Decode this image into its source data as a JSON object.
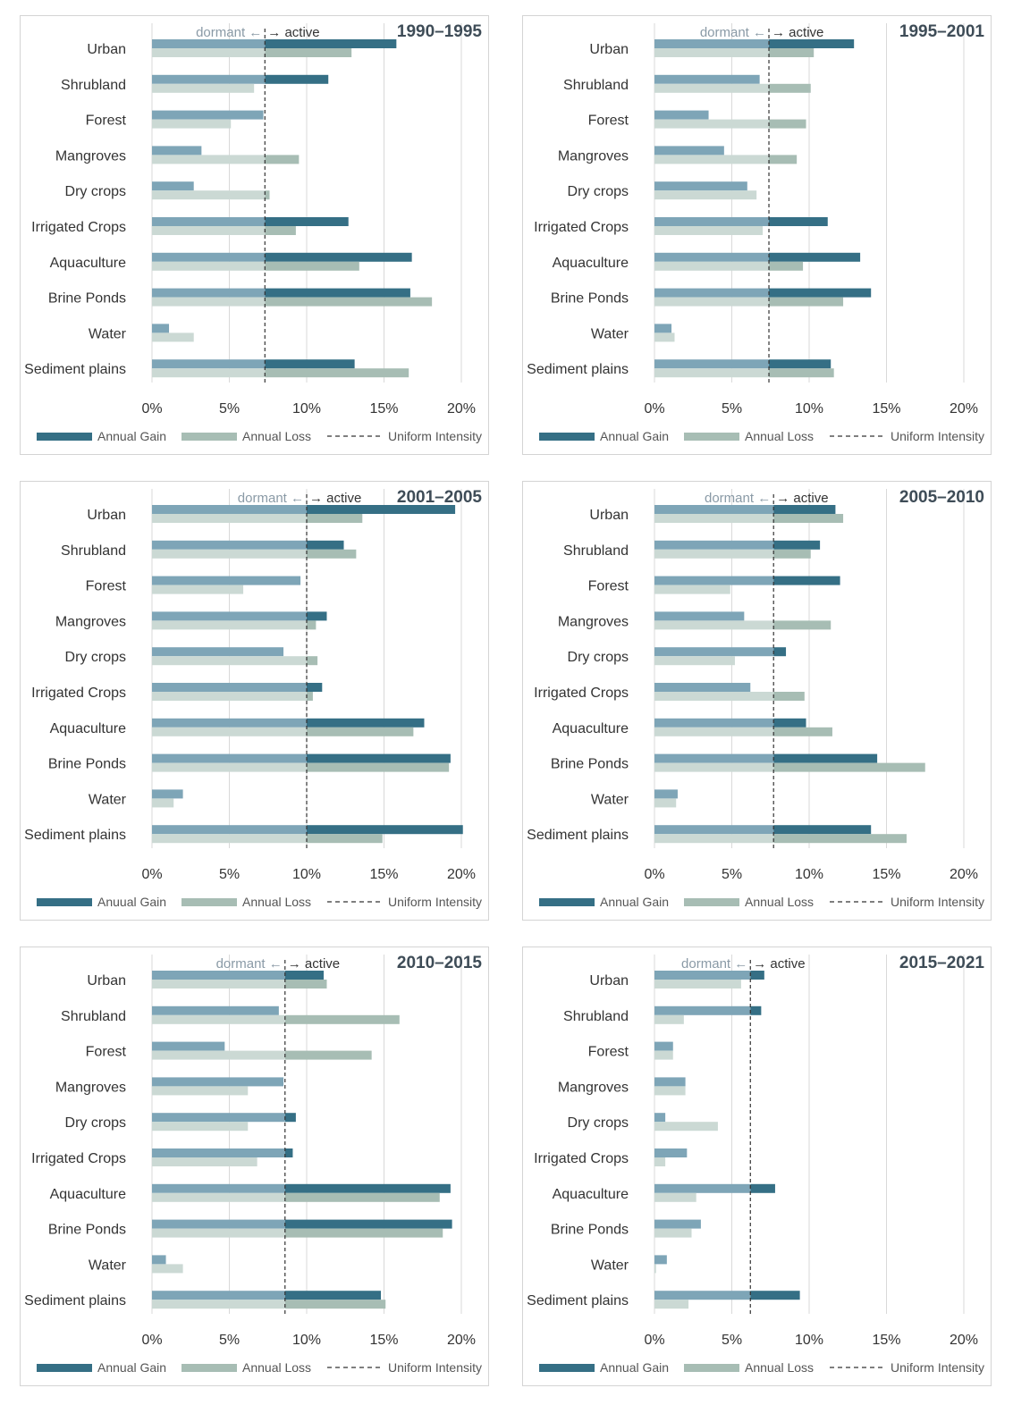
{
  "chart_data": [
    {
      "type": "bar",
      "title": "1990–1995",
      "categories": [
        "Urban",
        "Shrubland",
        "Forest",
        "Mangroves",
        "Dry crops",
        "Irrigated Crops",
        "Aquaculture",
        "Brine Ponds",
        "Water",
        "Sediment plains"
      ],
      "series": [
        {
          "name": "Annual Gain",
          "values": [
            15.8,
            11.4,
            7.2,
            3.2,
            2.7,
            12.7,
            16.8,
            16.7,
            1.1,
            13.1
          ]
        },
        {
          "name": "Annual Loss",
          "values": [
            12.9,
            6.6,
            5.1,
            9.5,
            7.6,
            9.3,
            13.4,
            18.1,
            2.7,
            16.6
          ]
        }
      ],
      "uniform_intensity": 7.3,
      "xlim": [
        0,
        20
      ],
      "x_ticks": [
        "0%",
        "5%",
        "10%",
        "15%",
        "20%"
      ],
      "annotation": {
        "dormant": "dormant ←",
        "active": "→ active"
      },
      "legend": {
        "gain": "Annual Gain",
        "loss": "Annual Loss",
        "uniform": "Uniform Intensity"
      }
    },
    {
      "type": "bar",
      "title": "1995–2001",
      "categories": [
        "Urban",
        "Shrubland",
        "Forest",
        "Mangroves",
        "Dry crops",
        "Irrigated Crops",
        "Aquaculture",
        "Brine Ponds",
        "Water",
        "Sediment plains"
      ],
      "series": [
        {
          "name": "Annual Gain",
          "values": [
            12.9,
            6.8,
            3.5,
            4.5,
            6.0,
            11.2,
            13.3,
            14.0,
            1.1,
            11.4
          ]
        },
        {
          "name": "Annual Loss",
          "values": [
            10.3,
            10.1,
            9.8,
            9.2,
            6.6,
            7.0,
            9.6,
            12.2,
            1.3,
            11.6
          ]
        }
      ],
      "uniform_intensity": 7.4,
      "xlim": [
        0,
        20
      ],
      "x_ticks": [
        "0%",
        "5%",
        "10%",
        "15%",
        "20%"
      ],
      "annotation": {
        "dormant": "dormant ←",
        "active": "→ active"
      },
      "legend": {
        "gain": "Annual Gain",
        "loss": "Annual Loss",
        "uniform": "Uniform Intensity"
      }
    },
    {
      "type": "bar",
      "title": "2001–2005",
      "categories": [
        "Urban",
        "Shrubland",
        "Forest",
        "Mangroves",
        "Dry crops",
        "Irrigated Crops",
        "Aquaculture",
        "Brine Ponds",
        "Water",
        "Sediment plains"
      ],
      "series": [
        {
          "name": "Anuual Gain",
          "values": [
            19.6,
            12.4,
            9.6,
            11.3,
            8.5,
            11.0,
            17.6,
            19.3,
            2.0,
            20.1
          ]
        },
        {
          "name": "Annual Loss",
          "values": [
            13.6,
            13.2,
            5.9,
            10.6,
            10.7,
            10.4,
            16.9,
            19.2,
            1.4,
            14.9
          ]
        }
      ],
      "uniform_intensity": 10.0,
      "xlim": [
        0,
        20
      ],
      "x_ticks": [
        "0%",
        "5%",
        "10%",
        "15%",
        "20%"
      ],
      "annotation": {
        "dormant": "dormant ←",
        "active": "→ active"
      },
      "legend": {
        "gain": "Anuual Gain",
        "loss": "Annual Loss",
        "uniform": "Uniform Intensity"
      }
    },
    {
      "type": "bar",
      "title": "2005–2010",
      "categories": [
        "Urban",
        "Shrubland",
        "Forest",
        "Mangroves",
        "Dry crops",
        "Irrigated Crops",
        "Aquaculture",
        "Brine Ponds",
        "Water",
        "Sediment plains"
      ],
      "series": [
        {
          "name": "Annual Gain",
          "values": [
            11.7,
            10.7,
            12.0,
            5.8,
            8.5,
            6.2,
            9.8,
            14.4,
            1.5,
            14.0
          ]
        },
        {
          "name": "Annual Loss",
          "values": [
            12.2,
            10.1,
            4.9,
            11.4,
            5.2,
            9.7,
            11.5,
            17.5,
            1.4,
            16.3
          ]
        }
      ],
      "uniform_intensity": 7.7,
      "xlim": [
        0,
        20
      ],
      "x_ticks": [
        "0%",
        "5%",
        "10%",
        "15%",
        "20%"
      ],
      "annotation": {
        "dormant": "dormant ←",
        "active": "→ active"
      },
      "legend": {
        "gain": "Annual Gain",
        "loss": "Annual Loss",
        "uniform": "Uniform Intensity"
      }
    },
    {
      "type": "bar",
      "title": "2010–2015",
      "categories": [
        "Urban",
        "Shrubland",
        "Forest",
        "Mangroves",
        "Dry crops",
        "Irrigated Crops",
        "Aquaculture",
        "Brine Ponds",
        "Water",
        "Sediment plains"
      ],
      "series": [
        {
          "name": "Annual Gain",
          "values": [
            11.1,
            8.2,
            4.7,
            8.5,
            9.3,
            9.1,
            19.3,
            19.4,
            0.9,
            14.8
          ]
        },
        {
          "name": "Annual Loss",
          "values": [
            11.3,
            16.0,
            14.2,
            6.2,
            6.2,
            6.8,
            18.6,
            18.8,
            2.0,
            15.1
          ]
        }
      ],
      "uniform_intensity": 8.6,
      "xlim": [
        0,
        20
      ],
      "x_ticks": [
        "0%",
        "5%",
        "10%",
        "15%",
        "20%"
      ],
      "annotation": {
        "dormant": "dormant ←",
        "active": "→ active"
      },
      "legend": {
        "gain": "Annual Gain",
        "loss": "Annual Loss",
        "uniform": "Uniform Intensity"
      }
    },
    {
      "type": "bar",
      "title": "2015–2021",
      "categories": [
        "Urban",
        "Shrubland",
        "Forest",
        "Mangroves",
        "Dry crops",
        "Irrigated Crops",
        "Aquaculture",
        "Brine Ponds",
        "Water",
        "Sediment plains"
      ],
      "series": [
        {
          "name": "Annual Gain",
          "values": [
            7.1,
            6.9,
            1.2,
            2.0,
            0.7,
            2.1,
            7.8,
            3.0,
            0.8,
            9.4
          ]
        },
        {
          "name": "Annual Loss",
          "values": [
            5.6,
            1.9,
            1.2,
            2.0,
            4.1,
            0.7,
            2.7,
            2.4,
            0.1,
            2.2
          ]
        }
      ],
      "uniform_intensity": 6.2,
      "xlim": [
        0,
        20
      ],
      "x_ticks": [
        "0%",
        "5%",
        "10%",
        "15%",
        "20%"
      ],
      "annotation": {
        "dormant": "dormant ←",
        "active": "→ active"
      },
      "legend": {
        "gain": "Annual Gain",
        "loss": "Annual Loss",
        "uniform": "Uniform Intensity"
      }
    }
  ],
  "colors": {
    "gain_active": "#356f85",
    "gain_dormant": "#7ea5b7",
    "loss_active": "#a7bdb4",
    "loss_dormant": "#cbd9d4",
    "grid": "#d9d9d9",
    "uniform_line": "#333333"
  }
}
